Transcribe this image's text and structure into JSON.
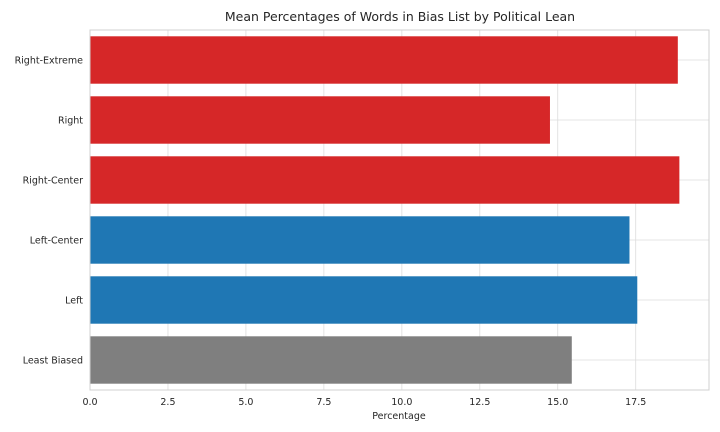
{
  "chart_data": {
    "type": "bar",
    "orientation": "horizontal",
    "title": "Mean Percentages of Words in Bias List by Political Lean",
    "xlabel": "Percentage",
    "ylabel": "",
    "categories": [
      "Right-Extreme",
      "Right",
      "Right-Center",
      "Left-Center",
      "Left",
      "Least Biased"
    ],
    "values": [
      18.85,
      14.75,
      18.9,
      17.3,
      17.55,
      15.45
    ],
    "colors": [
      "#d62728",
      "#d62728",
      "#d62728",
      "#1f77b4",
      "#1f77b4",
      "#7f7f7f"
    ],
    "xlim": [
      0,
      19.85
    ],
    "xticks": [
      0,
      2.5,
      5,
      7.5,
      10,
      12.5,
      15,
      17.5
    ],
    "xtick_labels": [
      "0.0",
      "2.5",
      "5.0",
      "7.5",
      "10.0",
      "12.5",
      "15.0",
      "17.5"
    ],
    "grid": true
  }
}
